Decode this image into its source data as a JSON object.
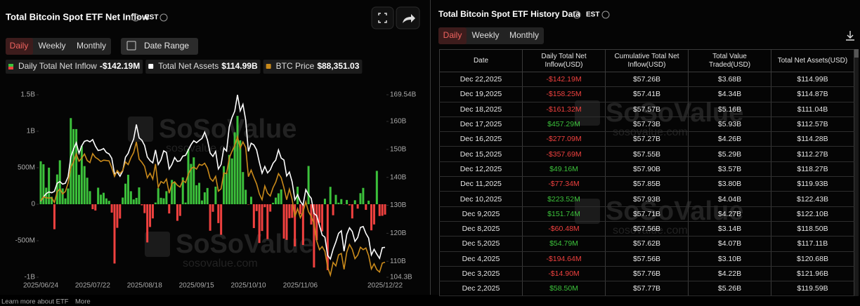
{
  "left_panel": {
    "title": "Total Bitcoin Spot ETF Net Inflow",
    "timezone": "EST",
    "tabs": [
      "Daily",
      "Weekly",
      "Monthly"
    ],
    "date_range": "Date Range"
  },
  "chart_data": {
    "type": "bar",
    "categories": [
      "2025/06/24",
      null,
      null,
      null,
      null,
      null,
      null,
      null,
      null,
      null,
      null,
      null,
      null,
      null,
      null,
      null,
      null,
      null,
      null,
      "2025/07/22",
      null,
      null,
      null,
      null,
      null,
      null,
      null,
      null,
      null,
      null,
      null,
      null,
      null,
      null,
      null,
      null,
      null,
      null,
      "2025/08/18",
      null,
      null,
      null,
      null,
      null,
      null,
      null,
      null,
      null,
      null,
      null,
      null,
      null,
      null,
      null,
      null,
      null,
      null,
      "2025/09/15",
      null,
      null,
      null,
      null,
      null,
      null,
      null,
      null,
      null,
      null,
      null,
      null,
      null,
      null,
      null,
      null,
      null,
      null,
      "2025/10/10",
      null,
      null,
      null,
      null,
      null,
      null,
      null,
      null,
      null,
      null,
      null,
      null,
      null,
      null,
      null,
      null,
      null,
      null,
      "2025/11/06",
      null,
      null,
      null,
      null,
      null,
      null,
      null,
      null,
      null,
      null,
      null,
      null,
      null,
      null,
      null,
      null,
      null,
      null,
      null,
      null,
      null,
      null,
      null,
      null,
      null,
      null,
      null,
      null,
      null,
      null,
      "2025/12/22"
    ],
    "series": [
      {
        "name": "Daily Total Net Inflow",
        "legend_value": "-$142.19M",
        "type": "bar",
        "color": "#3cc13b",
        "negative_color": "#f0413f",
        "values": [
          588.6,
          547.7,
          226.6,
          501.1,
          102.1,
          -342.3,
          407.8,
          601.9,
          216.5,
          80.1,
          215.7,
          1180,
          1030,
          1030,
          403,
          799.4,
          522.6,
          363.5,
          179.7,
          -68,
          -85.9,
          226.6,
          130.7,
          157,
          80,
          47,
          -114.8,
          -812.3,
          -323.5,
          -196.2,
          91.5,
          281.7,
          403.9,
          178.2,
          65.9,
          86.9,
          230.9,
          -14.1,
          -121.8,
          -523.3,
          -311.8,
          -194.3,
          23.1,
          219.1,
          88.2,
          81.3,
          178.9,
          -126.6,
          332.7,
          301.2,
          -227.2,
          -160.1,
          368.2,
          23,
          757.1,
          552.8,
          642.4,
          260,
          292.9,
          51.6,
          163.1,
          222.6,
          -363.2,
          -103.6,
          241,
          -258.4,
          -418.3,
          521.9,
          429.9,
          675.8,
          627.2,
          985.1,
          1210,
          875.6,
          440.7,
          197.8,
          -4.5,
          102.6,
          -326.4,
          -93.6,
          -530.9,
          -366.6,
          -40.5,
          -477.2,
          -101.3,
          20.3,
          90.6,
          149.3,
          202.5,
          -470.7,
          -488.4,
          -191.6,
          -186.5,
          -577.7,
          240,
          -137.8,
          -558.4,
          1.2,
          524,
          -278,
          -866.7,
          -492.1,
          -254.5,
          -372.8,
          75.5,
          -903.2,
          238.4,
          -151.1,
          128.6,
          21.1,
          70.1,
          -3.5,
          58.5,
          -14.9,
          -194.64,
          54.79,
          -60.48,
          151.74,
          223.52,
          -77.34,
          49.16,
          -357.69,
          -277.09,
          457.29,
          -161.32,
          -158.25,
          -142.19
        ]
      },
      {
        "name": "Total Net Assets",
        "legend_value": "$114.99B",
        "type": "line",
        "axis": "y2",
        "color": "#ffffff",
        "values": [
          131.5,
          133.0,
          134.2,
          134.8,
          134.5,
          135.0,
          137.9,
          138.5,
          137.6,
          137.9,
          140.2,
          147.3,
          150.1,
          152.4,
          148.6,
          151.3,
          152.9,
          153.2,
          152.7,
          153.5,
          151.2,
          149.6,
          149.8,
          150.3,
          148.9,
          148.4,
          146.8,
          141.2,
          141.9,
          140.4,
          142.3,
          147.2,
          148.6,
          151.4,
          153.7,
          158.9,
          154.1,
          153.3,
          151.4,
          147.3,
          146.0,
          145.2,
          149.8,
          144.6,
          146.3,
          149.5,
          148.9,
          143.0,
          144.6,
          147.1,
          145.7,
          145.9,
          147.6,
          147.9,
          149.8,
          151.7,
          153.1,
          152.4,
          153.2,
          153.9,
          156.2,
          153.4,
          148.7,
          147.5,
          149.3,
          143.0,
          144.6,
          150.5,
          149.4,
          158.1,
          161.4,
          163.7,
          169.5,
          163.8,
          166.1,
          160.5,
          149.3,
          152.2,
          151.6,
          149.8,
          145.4,
          141.5,
          143.9,
          141.6,
          142.7,
          145.0,
          146.2,
          149.8,
          146.9,
          146.2,
          140.5,
          141.9,
          138.4,
          132.0,
          133.8,
          131.4,
          130.1,
          135.6,
          133.8,
          132.5,
          127.1,
          126.3,
          122.8,
          119.4,
          118.6,
          112.1,
          110.8,
          114.3,
          116.9,
          120.0,
          120.9,
          113.6,
          119.59,
          121.96,
          120.68,
          117.11,
          118.5,
          122.1,
          122.43,
          119.93,
          118.27,
          112.27,
          114.28,
          112.57,
          111.04,
          114.87,
          114.99
        ]
      },
      {
        "name": "BTC Price",
        "legend_value": "$88,351.03",
        "type": "line",
        "axis": "y3",
        "color": "#c98a1b",
        "values": [
          106200,
          107300,
          107100,
          107000,
          107100,
          105700,
          108800,
          109600,
          108200,
          108900,
          111300,
          115900,
          117500,
          119800,
          117700,
          118600,
          119800,
          117900,
          117300,
          119900,
          118800,
          118300,
          117600,
          118000,
          117900,
          117800,
          115800,
          113300,
          115000,
          114100,
          115000,
          117500,
          116700,
          118700,
          120200,
          123300,
          118300,
          117400,
          116200,
          112900,
          114200,
          112500,
          116900,
          110100,
          111800,
          111300,
          112500,
          108400,
          111200,
          111700,
          110700,
          110200,
          112100,
          111500,
          113900,
          115500,
          116000,
          115400,
          116800,
          116500,
          117100,
          115700,
          112700,
          111900,
          113300,
          109000,
          109700,
          114300,
          114100,
          118600,
          120600,
          122200,
          124800,
          121500,
          123300,
          121700,
          113200,
          115100,
          113000,
          111100,
          108200,
          106500,
          110500,
          108400,
          107600,
          110000,
          111600,
          114100,
          112900,
          110000,
          106500,
          109600,
          106600,
          101600,
          103900,
          101300,
          103000,
          105900,
          103000,
          101600,
          99700,
          94500,
          92000,
          92900,
          91500,
          86900,
          84600,
          88300,
          87300,
          90500,
          90900,
          86300,
          91300,
          93500,
          92100,
          89400,
          90400,
          92700,
          92000,
          92500,
          90300,
          86400,
          87900,
          86200,
          85500,
          88100,
          88351.03
        ]
      }
    ],
    "ylim": [
      -1000,
      1500
    ],
    "yticks": [
      {
        "value": 1500,
        "label": "1.5B"
      },
      {
        "value": 1000,
        "label": "1B"
      },
      {
        "value": 500,
        "label": "500M"
      },
      0,
      {
        "value": -500,
        "label": "-500M"
      },
      {
        "value": -1000,
        "label": "-1B"
      }
    ],
    "y2lim": [
      104.3,
      169.54
    ],
    "y2ticks": [
      {
        "value": 169.54,
        "label": "169.54B"
      },
      {
        "value": 160,
        "label": "160B"
      },
      {
        "value": 150,
        "label": "150B"
      },
      {
        "value": 140,
        "label": "140B"
      },
      {
        "value": 130,
        "label": "130B"
      },
      {
        "value": 120,
        "label": "120B"
      },
      {
        "value": 110,
        "label": "110B"
      },
      {
        "value": 104.3,
        "label": "104.3B"
      }
    ],
    "y3lim": [
      84000,
      137000
    ],
    "grid": false
  },
  "watermark": {
    "brand": "SoSoValue",
    "site": "sosovalue.com"
  },
  "right_panel": {
    "title": "Total Bitcoin Spot ETF History Data",
    "timezone": "EST",
    "tabs": [
      "Daily",
      "Weekly",
      "Monthly"
    ]
  },
  "table": {
    "columns": [
      "Date",
      "Daily Total Net Inflow(USD)",
      "Cumulative Total Net Inflow(USD)",
      "Total Value Traded(USD)",
      "Total Net Assets(USD)"
    ],
    "rows": [
      [
        "Dec 22,2025",
        "-$142.19M",
        "$57.26B",
        "$3.68B",
        "$114.99B"
      ],
      [
        "Dec 19,2025",
        "-$158.25M",
        "$57.41B",
        "$4.34B",
        "$114.87B"
      ],
      [
        "Dec 18,2025",
        "-$161.32M",
        "$57.57B",
        "$5.16B",
        "$111.04B"
      ],
      [
        "Dec 17,2025",
        "$457.29M",
        "$57.73B",
        "$5.93B",
        "$112.57B"
      ],
      [
        "Dec 16,2025",
        "-$277.09M",
        "$57.27B",
        "$4.26B",
        "$114.28B"
      ],
      [
        "Dec 15,2025",
        "-$357.69M",
        "$57.55B",
        "$5.29B",
        "$112.27B"
      ],
      [
        "Dec 12,2025",
        "$49.16M",
        "$57.90B",
        "$3.57B",
        "$118.27B"
      ],
      [
        "Dec 11,2025",
        "-$77.34M",
        "$57.85B",
        "$3.80B",
        "$119.93B"
      ],
      [
        "Dec 10,2025",
        "$223.52M",
        "$57.93B",
        "$4.04B",
        "$122.43B"
      ],
      [
        "Dec 9,2025",
        "$151.74M",
        "$57.71B",
        "$4.27B",
        "$122.10B"
      ],
      [
        "Dec 8,2025",
        "-$60.48M",
        "$57.56B",
        "$3.14B",
        "$118.50B"
      ],
      [
        "Dec 5,2025",
        "$54.79M",
        "$57.62B",
        "$4.07B",
        "$117.11B"
      ],
      [
        "Dec 4,2025",
        "-$194.64M",
        "$57.56B",
        "$3.10B",
        "$120.68B"
      ],
      [
        "Dec 3,2025",
        "-$14.90M",
        "$57.76B",
        "$4.22B",
        "$121.96B"
      ],
      [
        "Dec 2,2025",
        "$58.50M",
        "$57.77B",
        "$5.26B",
        "$119.59B"
      ]
    ]
  },
  "footer": {
    "learn_more": "Learn more about ETF",
    "more": "More"
  }
}
